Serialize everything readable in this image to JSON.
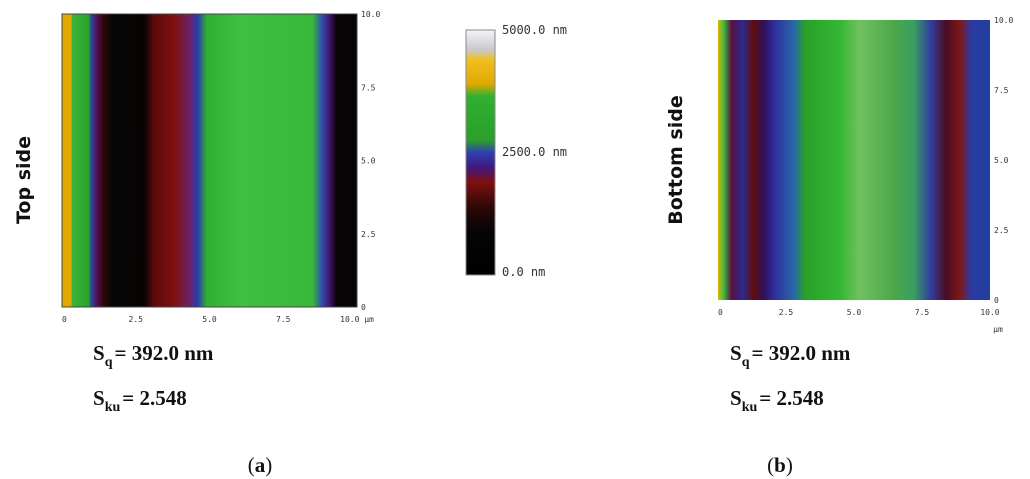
{
  "panels": [
    {
      "side_label": "Top side",
      "yticks": [
        "0",
        "2.5",
        "5.0",
        "7.5",
        "10.0"
      ],
      "xticks": [
        "0",
        "2.5",
        "5.0",
        "7.5",
        "10.0 µm"
      ],
      "stats": [
        {
          "symbol": "S",
          "subscript": "q",
          "value": "= 392.0 nm"
        },
        {
          "symbol": "S",
          "subscript": "ku",
          "value": "= 2.548"
        }
      ],
      "caption": {
        "open": "(",
        "letter": "a",
        "close": ")"
      }
    },
    {
      "side_label": "Bottom side",
      "yticks": [
        "0",
        "2.5",
        "5.0",
        "7.5",
        "10.0"
      ],
      "xticks": [
        "0",
        "2.5",
        "5.0",
        "7.5",
        "10.0"
      ],
      "x_unit": "µm",
      "stats": [
        {
          "symbol": "S",
          "subscript": "q",
          "value": "= 392.0 nm"
        },
        {
          "symbol": "S",
          "subscript": "ku",
          "value": "= 2.548"
        }
      ],
      "caption": {
        "open": "(",
        "letter": "b",
        "close": ")"
      }
    }
  ],
  "colorbar": {
    "labels": [
      "5000.0 nm",
      "2500.0 nm",
      "0.0 nm"
    ]
  }
}
